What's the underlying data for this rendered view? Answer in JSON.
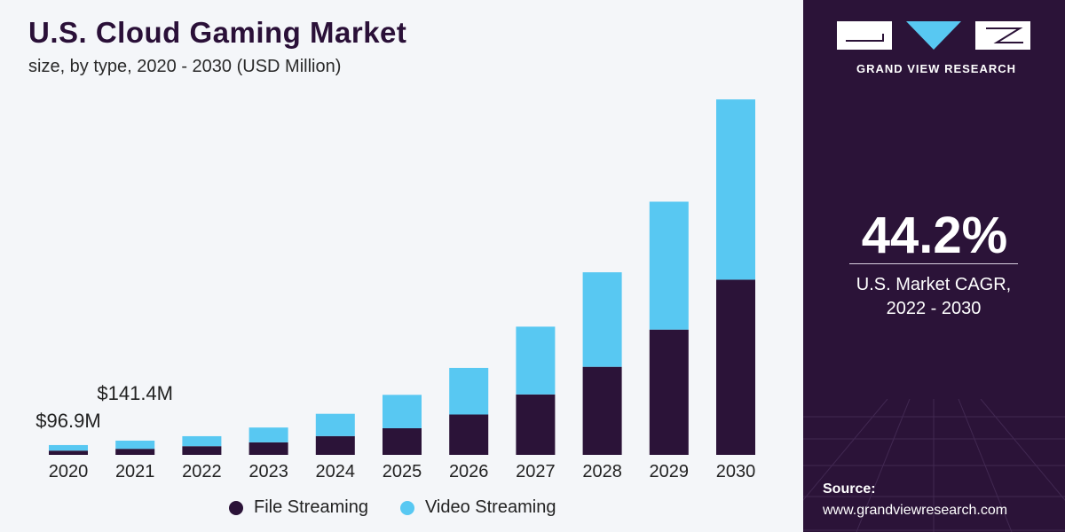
{
  "header": {
    "title": "U.S. Cloud Gaming Market",
    "subtitle": "size, by type, 2020 - 2030 (USD Million)"
  },
  "colors": {
    "file_streaming": "#2b1338",
    "video_streaming": "#58c8f2",
    "panel": "#2b1338",
    "background": "#f4f6f9"
  },
  "chart_data": {
    "type": "bar",
    "stacked": true,
    "title": "U.S. Cloud Gaming Market",
    "subtitle": "size, by type, 2020 - 2030 (USD Million)",
    "categories": [
      "2020",
      "2021",
      "2022",
      "2023",
      "2024",
      "2025",
      "2026",
      "2027",
      "2028",
      "2029",
      "2030"
    ],
    "series": [
      {
        "name": "File Streaming",
        "values": [
          42,
          60,
          86,
          124,
          186,
          264,
          400,
          599,
          873,
          1242,
          1737
        ]
      },
      {
        "name": "Video Streaming",
        "values": [
          55,
          81,
          99,
          147,
          221,
          331,
          462,
          672,
          937,
          1268,
          1787
        ]
      }
    ],
    "annotations": [
      {
        "category": "2020",
        "text": "$96.9M"
      },
      {
        "category": "2021",
        "text": "$141.4M"
      }
    ],
    "ylim": [
      0,
      3525
    ],
    "grid": false,
    "legend": "bottom"
  },
  "legend": {
    "items": [
      {
        "label": "File Streaming",
        "color": "#2b1338"
      },
      {
        "label": "Video Streaming",
        "color": "#58c8f2"
      }
    ]
  },
  "sidebar": {
    "brand": "GRAND VIEW RESEARCH",
    "cagr_value": "44.2%",
    "cagr_label": "U.S. Market CAGR,\n2022 - 2030",
    "source_label": "Source:",
    "source_url": "www.grandviewresearch.com"
  }
}
